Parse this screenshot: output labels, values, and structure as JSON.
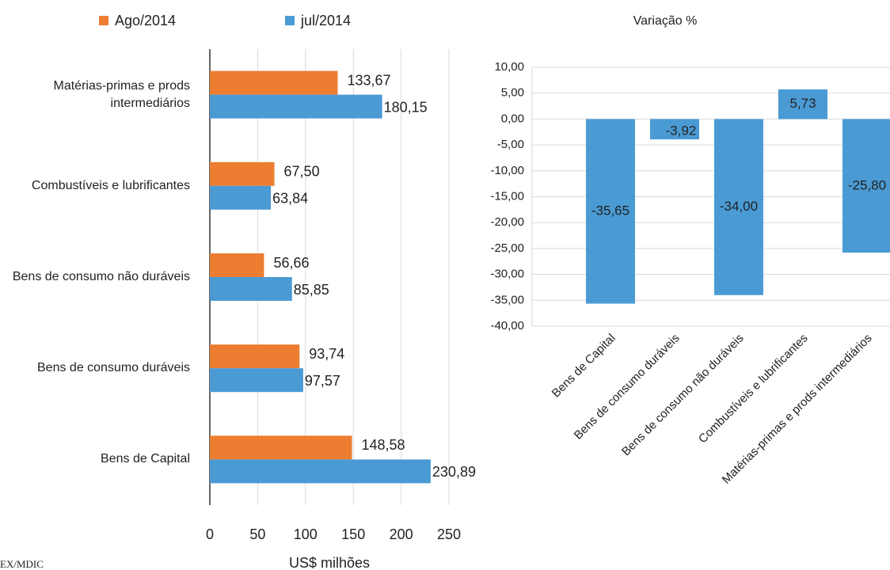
{
  "chart_data": [
    {
      "type": "bar",
      "orientation": "horizontal",
      "categories": [
        "Matérias-primas e prods intermediários",
        "Combustíveis e lubrificantes",
        "Bens de consumo não duráveis",
        "Bens de consumo duráveis",
        "Bens de Capital"
      ],
      "series": [
        {
          "name": "Ago/2014",
          "color": "#ed7d31",
          "values": [
            133.67,
            67.5,
            56.66,
            93.74,
            148.58
          ],
          "value_labels": [
            "133,67",
            "67,50",
            "56,66",
            "93,74",
            "148,58"
          ]
        },
        {
          "name": "jul/2014",
          "color": "#4a9ad4",
          "values": [
            180.15,
            63.84,
            85.85,
            97.57,
            230.89
          ],
          "value_labels": [
            "180,15",
            "63,84",
            "85,85",
            "97,57",
            "230,89"
          ]
        }
      ],
      "xlabel": "US$ milhões",
      "xlim": [
        0,
        250
      ],
      "xticks": [
        0,
        50,
        100,
        150,
        200,
        250
      ],
      "grid": true,
      "legend": "top",
      "source": "EX/MDIC"
    },
    {
      "type": "bar",
      "title": "Variação %",
      "categories": [
        "Bens de Capital",
        "Bens de consumo duráveis",
        "Bens de consumo não duráveis",
        "Combustíveis e lubrificantes",
        "Matérias-primas e prods intermediários"
      ],
      "values": [
        -35.65,
        -3.92,
        -34.0,
        5.73,
        -25.8
      ],
      "value_labels": [
        "-35,65",
        "-3,92",
        "-34,00",
        "5,73",
        "-25,80"
      ],
      "color": "#4a9ad4",
      "ylim": [
        -40,
        10
      ],
      "yticks": [
        {
          "value": 10,
          "label": "10,00"
        },
        {
          "value": 5,
          "label": "5,00"
        },
        {
          "value": 0,
          "label": "0,00"
        },
        {
          "value": -5,
          "label": "-5,00"
        },
        {
          "value": -10,
          "label": "-10,00"
        },
        {
          "value": -15,
          "label": "-15,00"
        },
        {
          "value": -20,
          "label": "-20,00"
        },
        {
          "value": -25,
          "label": "-25,00"
        },
        {
          "value": -30,
          "label": "-30,00"
        },
        {
          "value": -35,
          "label": "-35,00"
        },
        {
          "value": -40,
          "label": "-40,00"
        }
      ],
      "grid": true
    }
  ]
}
